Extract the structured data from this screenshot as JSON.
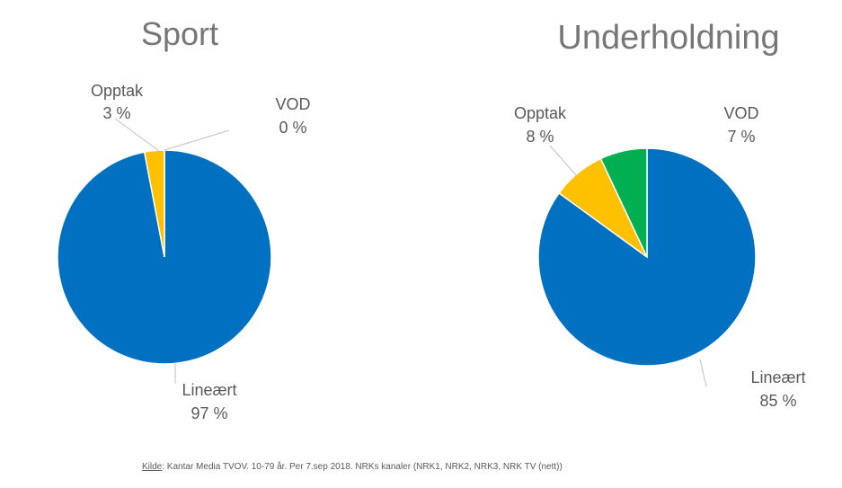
{
  "colors": {
    "linear": "#0070c0",
    "recording": "#ffc000",
    "vod": "#00b050"
  },
  "chart_data": [
    {
      "type": "pie",
      "title": "Sport",
      "slices": [
        {
          "label": "Lineært",
          "value": 97,
          "value_label": "97 %",
          "color": "#0070c0"
        },
        {
          "label": "Opptak",
          "value": 3,
          "value_label": "3 %",
          "color": "#ffc000"
        },
        {
          "label": "VOD",
          "value": 0,
          "value_label": "0 %",
          "color": "#00b050"
        }
      ]
    },
    {
      "type": "pie",
      "title": "Underholdning",
      "slices": [
        {
          "label": "Lineært",
          "value": 85,
          "value_label": "85 %",
          "color": "#0070c0"
        },
        {
          "label": "Opptak",
          "value": 8,
          "value_label": "8 %",
          "color": "#ffc000"
        },
        {
          "label": "VOD",
          "value": 7,
          "value_label": "7 %",
          "color": "#00b050"
        }
      ]
    }
  ],
  "source": {
    "label": "Kilde",
    "text": ": Kantar Media TVOV. 10-79 år. Per 7.sep 2018. NRKs kanaler (NRK1, NRK2, NRK3, NRK TV (nett))"
  }
}
